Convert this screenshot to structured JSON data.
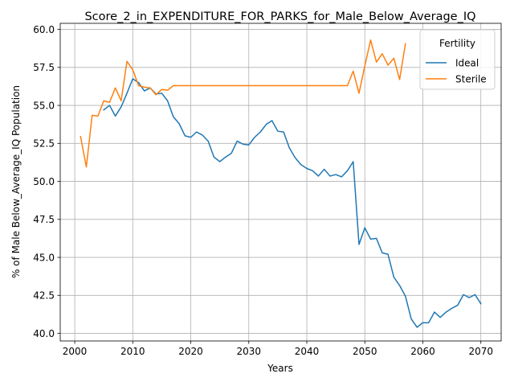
{
  "chart_data": {
    "type": "line",
    "title": "Score_2_in_EXPENDITURE_FOR_PARKS_for_Male_Below_Average_IQ",
    "xlabel": "Years",
    "ylabel": "% of Male Below_Average_IQ Population",
    "xlim": [
      1997.5,
      2073.5
    ],
    "ylim": [
      39.5,
      60.4
    ],
    "xticks": [
      2000,
      2010,
      2020,
      2030,
      2040,
      2050,
      2060,
      2070
    ],
    "xtick_labels": [
      "2000",
      "2010",
      "2020",
      "2030",
      "2040",
      "2050",
      "2060",
      "2070"
    ],
    "yticks": [
      40.0,
      42.5,
      45.0,
      47.5,
      50.0,
      52.5,
      55.0,
      57.5,
      60.0
    ],
    "ytick_labels": [
      "40.0",
      "42.5",
      "45.0",
      "47.5",
      "50.0",
      "52.5",
      "55.0",
      "57.5",
      "60.0"
    ],
    "grid": true,
    "legend": {
      "title": "Fertility",
      "placement": "top-right"
    },
    "series": [
      {
        "name": "Ideal",
        "color": "#1f77b4",
        "x": [
          2005,
          2006,
          2007,
          2008,
          2009,
          2010,
          2011,
          2012,
          2013,
          2014,
          2015,
          2016,
          2017,
          2018,
          2019,
          2020,
          2021,
          2022,
          2023,
          2024,
          2025,
          2026,
          2027,
          2028,
          2029,
          2030,
          2031,
          2032,
          2033,
          2034,
          2035,
          2036,
          2037,
          2038,
          2039,
          2040,
          2041,
          2042,
          2043,
          2044,
          2045,
          2046,
          2047,
          2048,
          2049,
          2050,
          2051,
          2052,
          2053,
          2054,
          2055,
          2056,
          2057,
          2058,
          2059,
          2060,
          2061,
          2062,
          2063,
          2064,
          2065,
          2066,
          2067,
          2068,
          2069,
          2070
        ],
        "y": [
          54.7,
          55.0,
          54.3,
          54.9,
          55.8,
          56.75,
          56.5,
          55.95,
          56.15,
          55.75,
          55.8,
          55.3,
          54.25,
          53.8,
          53.0,
          52.9,
          53.25,
          53.05,
          52.65,
          51.6,
          51.3,
          51.6,
          51.85,
          52.65,
          52.45,
          52.4,
          52.9,
          53.25,
          53.75,
          54.0,
          53.3,
          53.25,
          52.2,
          51.55,
          51.1,
          50.85,
          50.7,
          50.35,
          50.8,
          50.35,
          50.45,
          50.3,
          50.7,
          51.3,
          45.85,
          46.95,
          46.2,
          46.25,
          45.3,
          45.2,
          43.7,
          43.15,
          42.45,
          40.95,
          40.4,
          40.7,
          40.7,
          41.4,
          41.05,
          41.4,
          41.65,
          41.85,
          42.55,
          42.35,
          42.55,
          41.95
        ]
      },
      {
        "name": "Sterile",
        "color": "#ff7f0e",
        "x": [
          2001,
          2002,
          2003,
          2004,
          2005,
          2006,
          2007,
          2008,
          2009,
          2010,
          2011,
          2012,
          2013,
          2014,
          2015,
          2016,
          2017,
          2018,
          2019,
          2020,
          2021,
          2022,
          2023,
          2024,
          2025,
          2026,
          2027,
          2028,
          2029,
          2030,
          2031,
          2032,
          2033,
          2034,
          2035,
          2036,
          2037,
          2038,
          2039,
          2040,
          2041,
          2042,
          2043,
          2044,
          2045,
          2046,
          2047,
          2048,
          2049,
          2050,
          2051,
          2052,
          2053,
          2054,
          2055,
          2056,
          2057
        ],
        "y": [
          52.95,
          50.95,
          54.35,
          54.3,
          55.3,
          55.2,
          56.15,
          55.3,
          57.9,
          57.35,
          56.3,
          56.2,
          56.15,
          55.7,
          56.05,
          56.0,
          56.3,
          56.3,
          56.3,
          56.3,
          56.3,
          56.3,
          56.3,
          56.3,
          56.3,
          56.3,
          56.3,
          56.3,
          56.3,
          56.3,
          56.3,
          56.3,
          56.3,
          56.3,
          56.3,
          56.3,
          56.3,
          56.3,
          56.3,
          56.3,
          56.3,
          56.3,
          56.3,
          56.3,
          56.3,
          56.3,
          56.3,
          57.25,
          55.8,
          57.6,
          59.3,
          57.85,
          58.4,
          57.65,
          58.1,
          56.7,
          59.05
        ]
      }
    ]
  }
}
